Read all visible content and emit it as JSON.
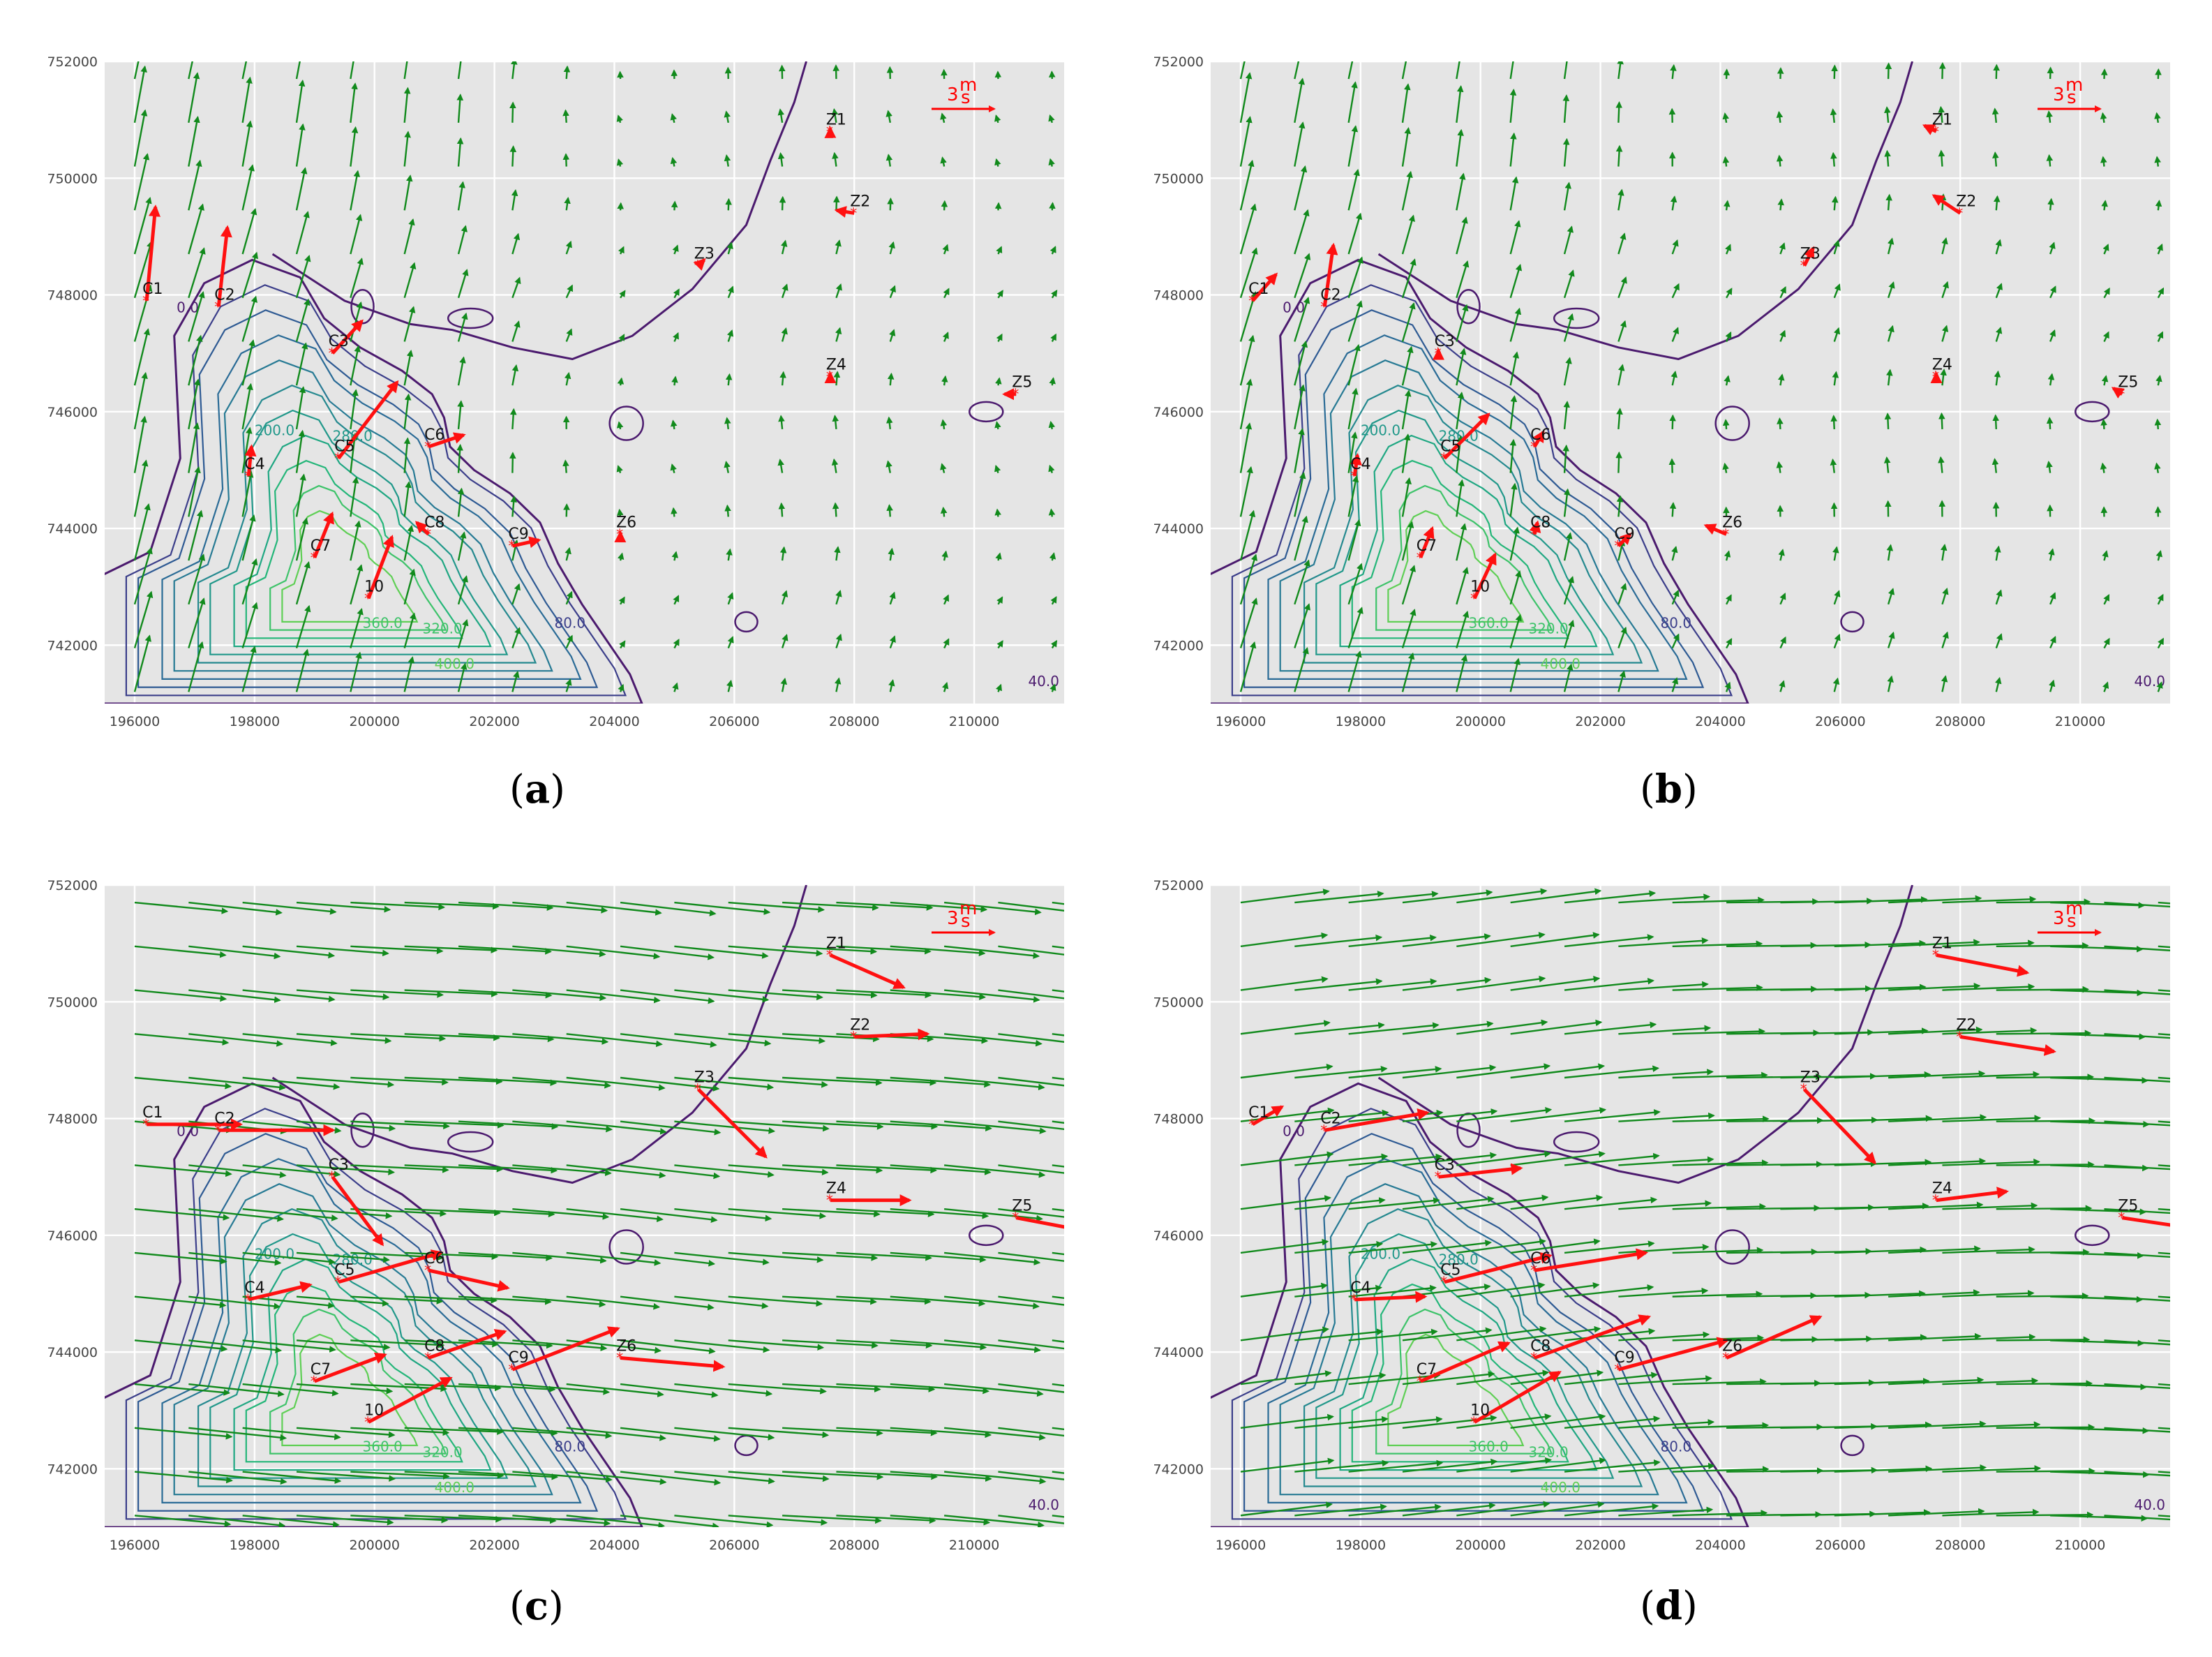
{
  "figure": {
    "panels": [
      {
        "id": "a",
        "label_open": "(",
        "label": "a",
        "label_close": ")"
      },
      {
        "id": "b",
        "label_open": "(",
        "label": "b",
        "label_close": ")"
      },
      {
        "id": "c",
        "label_open": "(",
        "label": "c",
        "label_close": ")"
      },
      {
        "id": "d",
        "label_open": "(",
        "label": "d",
        "label_close": ")"
      }
    ],
    "scale_arrow": {
      "label": "3",
      "unit_top": "m",
      "unit_bottom": "s",
      "color": "#ff0000"
    },
    "colors": {
      "wind_vector": "#118a1c",
      "station_vector": "#ff1010",
      "coast_contour": "#4b1a6e",
      "plot_background": "#e5e5e5"
    },
    "contour_labels": [
      "0.0",
      "40.0",
      "80.0",
      "200.0",
      "280.0",
      "360.0",
      "400.0",
      "320.0"
    ]
  },
  "chart_data": {
    "type": "quiver",
    "xlim": [
      195500,
      211500
    ],
    "ylim": [
      741000,
      752000
    ],
    "x_ticks": [
      196000,
      198000,
      200000,
      202000,
      204000,
      206000,
      208000,
      210000
    ],
    "y_ticks": [
      742000,
      744000,
      746000,
      748000,
      750000,
      752000
    ],
    "x_tick_labels": [
      "196000",
      "198000",
      "200000",
      "202000",
      "204000",
      "206000",
      "208000",
      "210000"
    ],
    "y_tick_labels": [
      "742000",
      "744000",
      "746000",
      "748000",
      "750000",
      "752000"
    ],
    "grid": true,
    "stations": [
      {
        "name": "C1",
        "x": 196200,
        "y": 747900
      },
      {
        "name": "C2",
        "x": 197400,
        "y": 747800
      },
      {
        "name": "C3",
        "x": 199300,
        "y": 747000
      },
      {
        "name": "C4",
        "x": 197900,
        "y": 744900
      },
      {
        "name": "C5",
        "x": 199400,
        "y": 745200
      },
      {
        "name": "C6",
        "x": 200900,
        "y": 745400
      },
      {
        "name": "C7",
        "x": 199000,
        "y": 743500
      },
      {
        "name": "C8",
        "x": 200900,
        "y": 743900
      },
      {
        "name": "C9",
        "x": 202300,
        "y": 743700
      },
      {
        "name": "10",
        "x": 199900,
        "y": 742800
      },
      {
        "name": "Z1",
        "x": 207600,
        "y": 750800
      },
      {
        "name": "Z2",
        "x": 208000,
        "y": 749400
      },
      {
        "name": "Z3",
        "x": 205400,
        "y": 748500
      },
      {
        "name": "Z4",
        "x": 207600,
        "y": 746600
      },
      {
        "name": "Z5",
        "x": 210700,
        "y": 746300
      },
      {
        "name": "Z6",
        "x": 204100,
        "y": 743900
      }
    ],
    "panels": [
      {
        "id": "a",
        "field": {
          "u0": 0.6,
          "v0": 2.6,
          "u_grad_x": 0.0,
          "v_grad_x": -0.0003,
          "decay_x": 204000,
          "far_u": 0.05,
          "far_v": 0.45
        },
        "station_vectors": [
          {
            "u": 0.3,
            "v": 3.2
          },
          {
            "u": 0.3,
            "v": 2.7
          },
          {
            "u": 1.0,
            "v": 1.1
          },
          {
            "u": 0.1,
            "v": 1.0
          },
          {
            "u": 2.0,
            "v": 2.6
          },
          {
            "u": 1.2,
            "v": 0.4
          },
          {
            "u": 0.6,
            "v": 1.5
          },
          {
            "u": -0.4,
            "v": 0.4
          },
          {
            "u": 0.9,
            "v": 0.2
          },
          {
            "u": 0.8,
            "v": 2.1
          },
          {
            "u": 0.0,
            "v": 0.1
          },
          {
            "u": -0.6,
            "v": 0.1
          },
          {
            "u": 0.2,
            "v": 0.2
          },
          {
            "u": 0.0,
            "v": 0.1
          },
          {
            "u": -0.4,
            "v": 0.0
          },
          {
            "u": 0.0,
            "v": 0.05
          }
        ]
      },
      {
        "id": "b",
        "field": {
          "u0": 0.55,
          "v0": 2.3,
          "u_grad_x": 0.0,
          "v_grad_x": -0.0003,
          "decay_x": 204000,
          "far_u": 0.08,
          "far_v": 0.55
        },
        "station_vectors": [
          {
            "u": 0.8,
            "v": 0.9
          },
          {
            "u": 0.3,
            "v": 2.1
          },
          {
            "u": 0.0,
            "v": 0.1
          },
          {
            "u": 0.1,
            "v": 0.7
          },
          {
            "u": 1.5,
            "v": 1.5
          },
          {
            "u": 0.3,
            "v": 0.5
          },
          {
            "u": 0.4,
            "v": 1.0
          },
          {
            "u": 0.1,
            "v": 0.4
          },
          {
            "u": 0.4,
            "v": 0.4
          },
          {
            "u": 0.7,
            "v": 1.5
          },
          {
            "u": -0.4,
            "v": 0.2
          },
          {
            "u": -0.9,
            "v": 0.6
          },
          {
            "u": 0.3,
            "v": 0.6
          },
          {
            "u": 0.0,
            "v": 0.1
          },
          {
            "u": -0.3,
            "v": 0.2
          },
          {
            "u": -0.7,
            "v": 0.3
          }
        ]
      },
      {
        "id": "c",
        "field": {
          "u0": 4.2,
          "v0": -0.3,
          "u_grad_x": 0.0,
          "v_grad_x": -0.0001,
          "decay_x": 212000,
          "far_u": 4.4,
          "far_v": -0.4
        },
        "station_vectors": [
          {
            "u": 3.2,
            "v": 0.0
          },
          {
            "u": 3.9,
            "v": 0.0
          },
          {
            "u": 1.7,
            "v": -2.3
          },
          {
            "u": 2.1,
            "v": 0.5
          },
          {
            "u": 3.5,
            "v": 1.0
          },
          {
            "u": 2.7,
            "v": -0.6
          },
          {
            "u": 2.4,
            "v": 0.9
          },
          {
            "u": 2.6,
            "v": 0.9
          },
          {
            "u": 3.6,
            "v": 1.4
          },
          {
            "u": 2.8,
            "v": 1.5
          },
          {
            "u": 2.5,
            "v": -1.1
          },
          {
            "u": 2.5,
            "v": 0.1
          },
          {
            "u": 2.3,
            "v": -2.3
          },
          {
            "u": 2.7,
            "v": 0.0
          },
          {
            "u": 2.1,
            "v": -0.4
          },
          {
            "u": 3.5,
            "v": -0.3
          }
        ]
      },
      {
        "id": "d",
        "field": {
          "u0": 4.0,
          "v0": 0.6,
          "u_grad_x": 0.0,
          "v_grad_x": 0.0001,
          "decay_x": 212000,
          "far_u": 4.3,
          "far_v": -0.2
        },
        "station_vectors": [
          {
            "u": 1.0,
            "v": 0.6
          },
          {
            "u": 3.5,
            "v": 0.6
          },
          {
            "u": 2.8,
            "v": 0.3
          },
          {
            "u": 2.4,
            "v": 0.1
          },
          {
            "u": 3.6,
            "v": 0.9
          },
          {
            "u": 3.8,
            "v": 0.6
          },
          {
            "u": 3.0,
            "v": 1.3
          },
          {
            "u": 3.9,
            "v": 1.4
          },
          {
            "u": 3.7,
            "v": 1.0
          },
          {
            "u": 2.9,
            "v": 1.7
          },
          {
            "u": 3.1,
            "v": -0.6
          },
          {
            "u": 3.2,
            "v": -0.5
          },
          {
            "u": 2.4,
            "v": -2.5
          },
          {
            "u": 2.4,
            "v": 0.3
          },
          {
            "u": 2.0,
            "v": -0.3
          },
          {
            "u": 3.2,
            "v": 1.4
          }
        ]
      }
    ]
  }
}
